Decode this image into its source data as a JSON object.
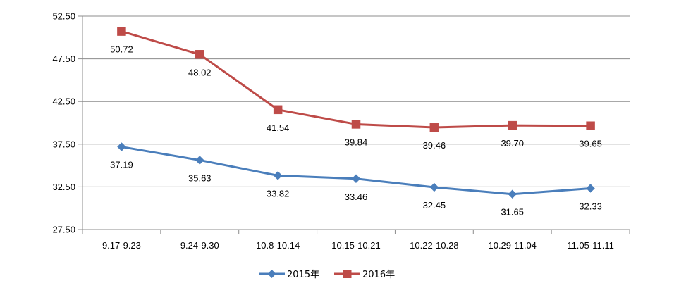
{
  "chart_data": {
    "type": "line",
    "title": "",
    "xlabel": "",
    "ylabel": "",
    "categories": [
      "9.17-9.23",
      "9.24-9.30",
      "10.8-10.14",
      "10.15-10.21",
      "10.22-10.28",
      "10.29-11.04",
      "11.05-11.11"
    ],
    "ylim": [
      27.5,
      52.5
    ],
    "yticks": [
      "27.50",
      "32.50",
      "37.50",
      "42.50",
      "47.50",
      "52.50"
    ],
    "grid": "horizontal",
    "legend_position": "bottom",
    "series": [
      {
        "name": "2015年",
        "color": "#4a7ebb",
        "marker": "diamond",
        "values": [
          37.19,
          35.63,
          33.82,
          33.46,
          32.45,
          31.65,
          32.33
        ],
        "labels": [
          "37.19",
          "35.63",
          "33.82",
          "33.46",
          "32.45",
          "31.65",
          "32.33"
        ]
      },
      {
        "name": "2016年",
        "color": "#be4b48",
        "marker": "square",
        "values": [
          50.72,
          48.02,
          41.54,
          39.84,
          39.46,
          39.7,
          39.65
        ],
        "labels": [
          "50.72",
          "48.02",
          "41.54",
          "39.84",
          "39.46",
          "39.70",
          "39.65"
        ]
      }
    ]
  },
  "colors": {
    "gridline": "#8c8c8c",
    "axis": "#8c8c8c",
    "text": "#000000"
  }
}
